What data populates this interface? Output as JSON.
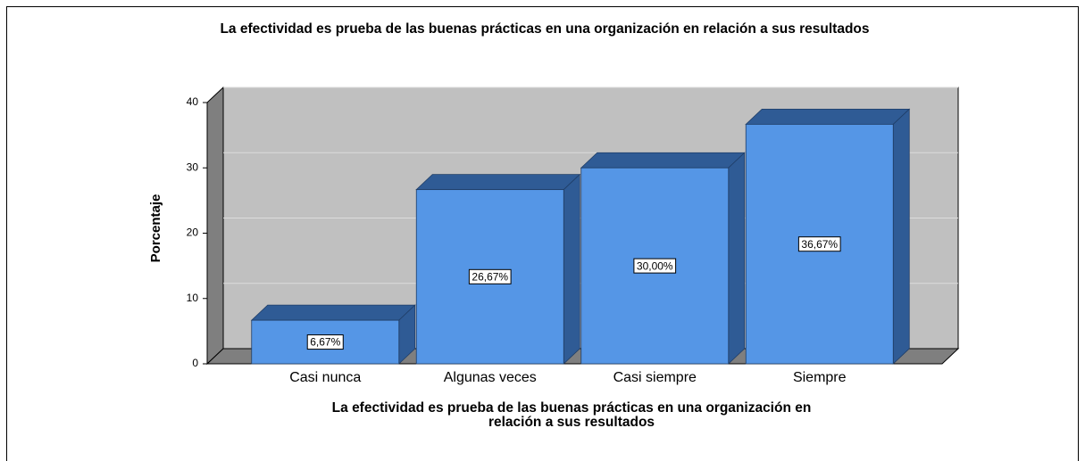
{
  "chart_data": {
    "type": "bar3d",
    "title": "La efectividad es prueba de las buenas prácticas en una organización en relación a sus resultados",
    "ylabel": "Porcentaje",
    "xlabel": [
      "La efectividad es prueba de las buenas prácticas en una organización en",
      "relación a sus resultados"
    ],
    "categories": [
      "Casi nunca",
      "Algunas veces",
      "Casi siempre",
      "Siempre"
    ],
    "values": [
      6.67,
      26.67,
      30.0,
      36.67
    ],
    "value_labels": [
      "6,67%",
      "26,67%",
      "30,00%",
      "36,67%"
    ],
    "color": "#5596e6",
    "ylim": [
      0,
      40
    ],
    "yticks": [
      0,
      10,
      20,
      30,
      40
    ],
    "grid": true
  }
}
